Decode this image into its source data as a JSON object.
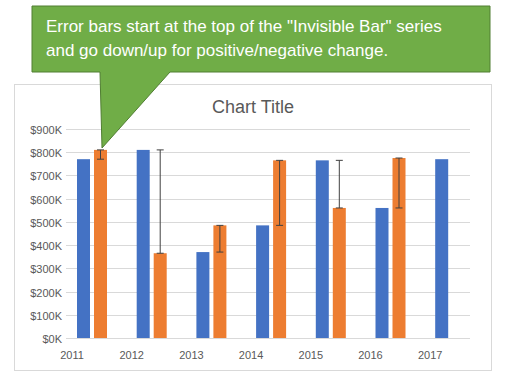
{
  "chart_data": {
    "type": "bar",
    "title": "Chart Title",
    "annotation": [
      "Error bars start at the top of the \"Invisible Bar\" series",
      "and go down/up for positive/negative change."
    ],
    "categories": [
      "2011",
      "2012",
      "2013",
      "2014",
      "2015",
      "2016",
      "2017"
    ],
    "series": [
      {
        "color": "#4472c4",
        "values": [
          770000,
          810000,
          370000,
          485000,
          765000,
          560000,
          770000
        ]
      },
      {
        "color": "#ed7d31",
        "values": [
          810000,
          365000,
          485000,
          765000,
          560000,
          775000,
          null
        ],
        "errors": [
          -40000,
          445000,
          -115000,
          -280000,
          205000,
          -215000,
          null
        ]
      }
    ],
    "ylim": [
      0,
      900000
    ],
    "yticks": [
      {
        "value": 0,
        "label": "$0K"
      },
      {
        "value": 100000,
        "label": "$100K"
      },
      {
        "value": 200000,
        "label": "$200K"
      },
      {
        "value": 300000,
        "label": "$300K"
      },
      {
        "value": 400000,
        "label": "$400K"
      },
      {
        "value": 500000,
        "label": "$500K"
      },
      {
        "value": 600000,
        "label": "$600K"
      },
      {
        "value": 700000,
        "label": "$700K"
      },
      {
        "value": 800000,
        "label": "$800K"
      },
      {
        "value": 900000,
        "label": "$900K"
      }
    ],
    "grid": true
  }
}
